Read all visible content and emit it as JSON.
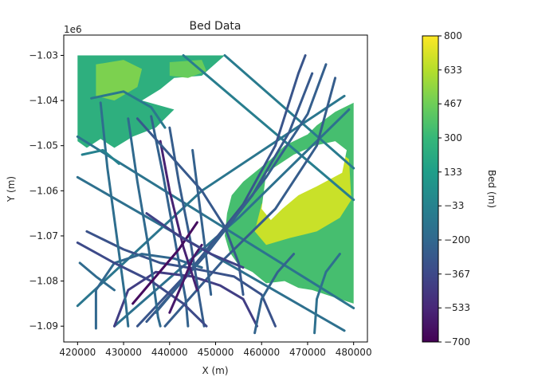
{
  "chart_data": {
    "type": "scatter",
    "title": "Bed Data",
    "xlabel": "X (m)",
    "ylabel": "Y (m)",
    "y_offset_label": "1e6",
    "xlim": [
      417000,
      483000
    ],
    "ylim": [
      -1.0935,
      -1.0255
    ],
    "x_ticks": [
      420000,
      430000,
      440000,
      450000,
      460000,
      470000,
      480000
    ],
    "x_tick_labels": [
      "420000",
      "430000",
      "440000",
      "450000",
      "460000",
      "470000",
      "480000"
    ],
    "y_ticks": [
      -1.03,
      -1.04,
      -1.05,
      -1.06,
      -1.07,
      -1.08,
      -1.09
    ],
    "y_tick_labels": [
      "−1.03",
      "−1.04",
      "−1.05",
      "−1.06",
      "−1.07",
      "−1.08",
      "−1.09"
    ],
    "grid": false,
    "colorbar": {
      "label": "Bed (m)",
      "min": -700,
      "max": 800,
      "ticks": [
        800,
        633,
        467,
        300,
        133,
        -33,
        -200,
        -367,
        -533,
        -700
      ],
      "tick_labels": [
        "800",
        "633",
        "467",
        "300",
        "133",
        "−33",
        "−200",
        "−367",
        "−533",
        "−700"
      ],
      "colormap": "viridis",
      "stops": [
        "#440154",
        "#482878",
        "#3e4989",
        "#31688e",
        "#26828e",
        "#1f9e89",
        "#35b779",
        "#6ece58",
        "#b5de2b",
        "#fde725"
      ]
    },
    "surface_regions": [
      {
        "name": "northwest",
        "polygon": [
          [
            420000,
            -1.03
          ],
          [
            452000,
            -1.03
          ],
          [
            447000,
            -1.0345
          ],
          [
            441000,
            -1.035
          ],
          [
            438000,
            -1.0375
          ],
          [
            434000,
            -1.04
          ],
          [
            441000,
            -1.042
          ],
          [
            437000,
            -1.046
          ],
          [
            432000,
            -1.048
          ],
          [
            428000,
            -1.0505
          ],
          [
            425000,
            -1.0485
          ],
          [
            422000,
            -1.0505
          ],
          [
            420000,
            -1.049
          ]
        ],
        "value": 250
      },
      {
        "name": "northwest-high",
        "polygon": [
          [
            424000,
            -1.032
          ],
          [
            430000,
            -1.031
          ],
          [
            434000,
            -1.033
          ],
          [
            433000,
            -1.037
          ],
          [
            428000,
            -1.04
          ],
          [
            424000,
            -1.039
          ]
        ],
        "value": 500
      },
      {
        "name": "northwest-plateau",
        "polygon": [
          [
            440000,
            -1.0315
          ],
          [
            447000,
            -1.031
          ],
          [
            448000,
            -1.0335
          ],
          [
            444000,
            -1.035
          ],
          [
            440000,
            -1.0345
          ]
        ],
        "value": 450
      },
      {
        "name": "east",
        "polygon": [
          [
            480000,
            -1.0405
          ],
          [
            476000,
            -1.0425
          ],
          [
            472000,
            -1.0455
          ],
          [
            470000,
            -1.0475
          ],
          [
            465000,
            -1.05
          ],
          [
            462000,
            -1.053
          ],
          [
            459000,
            -1.0555
          ],
          [
            456000,
            -1.058
          ],
          [
            453500,
            -1.061
          ],
          [
            452500,
            -1.065
          ],
          [
            452000,
            -1.07
          ],
          [
            453000,
            -1.0735
          ],
          [
            455000,
            -1.0765
          ],
          [
            458000,
            -1.078
          ],
          [
            461000,
            -1.0805
          ],
          [
            465000,
            -1.08
          ],
          [
            468000,
            -1.0815
          ],
          [
            471000,
            -1.082
          ],
          [
            474000,
            -1.083
          ],
          [
            477000,
            -1.084
          ],
          [
            480000,
            -1.085
          ]
        ],
        "value": 350
      },
      {
        "name": "east-high",
        "polygon": [
          [
            466000,
            -1.054
          ],
          [
            471000,
            -1.051
          ],
          [
            475000,
            -1.05
          ],
          [
            479000,
            -1.053
          ],
          [
            479500,
            -1.062
          ],
          [
            477000,
            -1.066
          ],
          [
            472000,
            -1.069
          ],
          [
            466000,
            -1.0705
          ],
          [
            461000,
            -1.072
          ],
          [
            458500,
            -1.069
          ],
          [
            460000,
            -1.063
          ],
          [
            463000,
            -1.058
          ]
        ],
        "value": 680
      },
      {
        "name": "east-white-area",
        "polygon": [
          [
            461000,
            -1.056
          ],
          [
            467000,
            -1.052
          ],
          [
            471500,
            -1.05
          ],
          [
            476000,
            -1.049
          ],
          [
            478500,
            -1.051
          ],
          [
            477500,
            -1.056
          ],
          [
            472000,
            -1.059
          ],
          [
            468000,
            -1.061
          ],
          [
            464500,
            -1.064
          ],
          [
            462000,
            -1.0665
          ],
          [
            460000,
            -1.064
          ]
        ],
        "value": 800
      }
    ],
    "flight_lines": [
      {
        "name": "ne-diag-1",
        "points": [
          [
            452000,
            -1.03
          ],
          [
            480000,
            -1.055
          ]
        ],
        "value": -80
      },
      {
        "name": "ne-diag-2",
        "points": [
          [
            443000,
            -1.03
          ],
          [
            480000,
            -1.062
          ]
        ],
        "value": -60
      },
      {
        "name": "nw-diag-1",
        "points": [
          [
            420000,
            -1.048
          ],
          [
            480000,
            -1.086
          ]
        ],
        "value": -120
      },
      {
        "name": "nw-diag-2",
        "points": [
          [
            420000,
            -1.057
          ],
          [
            478000,
            -1.091
          ]
        ],
        "value": -150
      },
      {
        "name": "sw-ne-1",
        "points": [
          [
            420000,
            -1.0855
          ],
          [
            447000,
            -1.06
          ],
          [
            478000,
            -1.039
          ]
        ],
        "value": -110
      },
      {
        "name": "sw-ne-2",
        "points": [
          [
            428000,
            -1.09
          ],
          [
            455000,
            -1.066
          ],
          [
            479000,
            -1.042
          ]
        ],
        "value": -140
      },
      {
        "name": "curve-1",
        "points": [
          [
            433000,
            -1.09
          ],
          [
            445000,
            -1.077
          ],
          [
            456000,
            -1.063
          ],
          [
            463000,
            -1.05
          ],
          [
            468000,
            -1.034
          ],
          [
            469500,
            -1.03
          ]
        ],
        "value": -300
      },
      {
        "name": "curve-2",
        "points": [
          [
            435000,
            -1.089
          ],
          [
            448000,
            -1.074
          ],
          [
            458000,
            -1.061
          ],
          [
            466000,
            -1.047
          ],
          [
            471000,
            -1.034
          ]
        ],
        "value": -280
      },
      {
        "name": "curve-3",
        "points": [
          [
            437000,
            -1.087
          ],
          [
            451000,
            -1.07
          ],
          [
            461000,
            -1.057
          ],
          [
            470000,
            -1.043
          ],
          [
            474000,
            -1.032
          ]
        ],
        "value": -250
      },
      {
        "name": "curve-4",
        "points": [
          [
            439000,
            -1.09
          ],
          [
            452000,
            -1.075
          ],
          [
            463000,
            -1.064
          ],
          [
            472000,
            -1.05
          ],
          [
            476000,
            -1.035
          ]
        ],
        "value": -260
      },
      {
        "name": "loop-west",
        "points": [
          [
            422000,
            -1.069
          ],
          [
            430000,
            -1.073
          ],
          [
            438000,
            -1.076
          ],
          [
            444000,
            -1.077
          ],
          [
            449000,
            -1.078
          ],
          [
            454000,
            -1.079
          ],
          [
            460000,
            -1.083
          ],
          [
            463000,
            -1.09
          ]
        ],
        "value": -320
      },
      {
        "name": "south-arc-1",
        "points": [
          [
            424000,
            -1.0905
          ],
          [
            424000,
            -1.082
          ],
          [
            428000,
            -1.076
          ],
          [
            434000,
            -1.074
          ],
          [
            441000,
            -1.075
          ],
          [
            447000,
            -1.077
          ]
        ],
        "value": -200
      },
      {
        "name": "south-arc-2",
        "points": [
          [
            428000,
            -1.09
          ],
          [
            431000,
            -1.082
          ],
          [
            437000,
            -1.078
          ],
          [
            445000,
            -1.079
          ],
          [
            451000,
            -1.081
          ],
          [
            456000,
            -1.084
          ],
          [
            459000,
            -1.09
          ]
        ],
        "value": -420
      },
      {
        "name": "vertical-1",
        "points": [
          [
            425000,
            -1.0405
          ],
          [
            426500,
            -1.055
          ],
          [
            428500,
            -1.07
          ],
          [
            430500,
            -1.085
          ],
          [
            431000,
            -1.09
          ]
        ],
        "value": -160
      },
      {
        "name": "vertical-2",
        "points": [
          [
            431000,
            -1.044
          ],
          [
            433000,
            -1.058
          ],
          [
            435500,
            -1.073
          ],
          [
            437500,
            -1.088
          ],
          [
            438000,
            -1.09
          ]
        ],
        "value": -190
      },
      {
        "name": "vertical-3",
        "points": [
          [
            436000,
            -1.0435
          ],
          [
            438500,
            -1.056
          ],
          [
            441000,
            -1.07
          ],
          [
            443500,
            -1.084
          ],
          [
            444000,
            -1.09
          ]
        ],
        "value": -230
      },
      {
        "name": "vertical-4",
        "points": [
          [
            440000,
            -1.046
          ],
          [
            442000,
            -1.058
          ],
          [
            444500,
            -1.071
          ],
          [
            446500,
            -1.084
          ],
          [
            447500,
            -1.09
          ]
        ],
        "value": -260
      },
      {
        "name": "steep-1",
        "points": [
          [
            438000,
            -1.049
          ],
          [
            440000,
            -1.06
          ],
          [
            443000,
            -1.0725
          ],
          [
            446000,
            -1.082
          ]
        ],
        "value": -560
      },
      {
        "name": "steep-2",
        "points": [
          [
            445000,
            -1.051
          ],
          [
            446500,
            -1.063
          ],
          [
            448000,
            -1.075
          ],
          [
            449000,
            -1.083
          ]
        ],
        "value": -240
      },
      {
        "name": "arc-mid",
        "points": [
          [
            433000,
            -1.044
          ],
          [
            440000,
            -1.052
          ],
          [
            447000,
            -1.06
          ],
          [
            452000,
            -1.068
          ],
          [
            455000,
            -1.076
          ],
          [
            456000,
            -1.083
          ]
        ],
        "value": -280
      },
      {
        "name": "west-diag-low",
        "points": [
          [
            420000,
            -1.0715
          ],
          [
            428000,
            -1.076
          ],
          [
            436000,
            -1.08
          ],
          [
            443000,
            -1.085
          ],
          [
            448000,
            -1.09
          ]
        ],
        "value": -360
      },
      {
        "name": "deep-1",
        "points": [
          [
            432000,
            -1.085
          ],
          [
            437000,
            -1.079
          ],
          [
            442000,
            -1.073
          ],
          [
            446000,
            -1.067
          ]
        ],
        "value": -650
      },
      {
        "name": "deep-2",
        "points": [
          [
            440000,
            -1.087
          ],
          [
            443000,
            -1.08
          ],
          [
            445000,
            -1.075
          ],
          [
            447000,
            -1.072
          ]
        ],
        "value": -600
      },
      {
        "name": "nw-arc",
        "points": [
          [
            423000,
            -1.0395
          ],
          [
            430000,
            -1.038
          ],
          [
            436000,
            -1.0415
          ],
          [
            439000,
            -1.046
          ]
        ],
        "value": -100
      },
      {
        "name": "east-curved-1",
        "points": [
          [
            458500,
            -1.0915
          ],
          [
            460000,
            -1.084
          ],
          [
            463500,
            -1.078
          ],
          [
            467000,
            -1.074
          ]
        ],
        "value": -220
      },
      {
        "name": "east-curved-2",
        "points": [
          [
            471500,
            -1.0915
          ],
          [
            472000,
            -1.084
          ],
          [
            474000,
            -1.078
          ],
          [
            477000,
            -1.074
          ]
        ],
        "value": -150
      },
      {
        "name": "center-thin",
        "points": [
          [
            435000,
            -1.065
          ],
          [
            442000,
            -1.07
          ],
          [
            449000,
            -1.074
          ],
          [
            456000,
            -1.077
          ]
        ],
        "value": -400
      },
      {
        "name": "mid-small-1",
        "points": [
          [
            421000,
            -1.052
          ],
          [
            425500,
            -1.051
          ],
          [
            429000,
            -1.054
          ]
        ],
        "value": -40
      },
      {
        "name": "mid-small-2",
        "points": [
          [
            420500,
            -1.076
          ],
          [
            424000,
            -1.079
          ],
          [
            428000,
            -1.082
          ]
        ],
        "value": -180
      }
    ]
  }
}
